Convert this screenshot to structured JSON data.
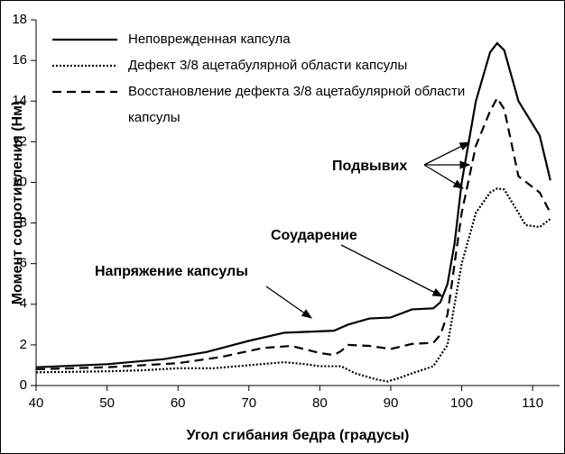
{
  "chart_data": {
    "type": "line",
    "xlabel": "Угол сгибания бедра (градусы)",
    "ylabel": "Момент сопротивления (Нм)",
    "xlim": [
      40,
      113.8
    ],
    "xticks": [
      40,
      50,
      60,
      70,
      80,
      90,
      100,
      110
    ],
    "ylim": [
      0,
      18
    ],
    "yticks": [
      0,
      2,
      4,
      6,
      8,
      10,
      12,
      14,
      16,
      18
    ],
    "grid": false,
    "legend": "upper left",
    "annotations": [
      "Подвывих",
      "Соударение",
      "Напряжение капсулы"
    ],
    "series": [
      {
        "name": "Неповрежденная капсула",
        "color": "#000000",
        "linestyle": "solid",
        "x": [
          40,
          50,
          58,
          64,
          70,
          75,
          82,
          84,
          87,
          90,
          93,
          96,
          97,
          98,
          99,
          100,
          102,
          104,
          105,
          106,
          108,
          111,
          112.5
        ],
        "values": [
          0.9,
          1.05,
          1.3,
          1.65,
          2.2,
          2.6,
          2.7,
          3.0,
          3.3,
          3.35,
          3.75,
          3.8,
          4.1,
          5,
          7,
          10,
          14,
          16.4,
          16.85,
          16.5,
          14,
          12.3,
          10.1
        ]
      },
      {
        "name": "Дефект 3/8 ацетабулярной области капсулы",
        "color": "#000000",
        "linestyle": "dotted",
        "x": [
          40,
          50,
          55,
          60,
          65,
          70,
          75,
          78,
          80,
          83,
          85,
          88,
          89.5,
          91,
          93,
          96,
          98,
          99,
          100,
          102,
          104,
          105,
          106,
          108,
          109,
          111,
          112.5
        ],
        "values": [
          0.65,
          0.7,
          0.75,
          0.85,
          0.85,
          1.0,
          1.15,
          1.05,
          0.95,
          0.95,
          0.6,
          0.3,
          0.2,
          0.35,
          0.6,
          0.95,
          2,
          4,
          6,
          8.5,
          9.5,
          9.7,
          9.65,
          8.5,
          7.9,
          7.8,
          8.2
        ]
      },
      {
        "name": "Восстановление дефекта 3/8 ацетабулярной области капсулы",
        "color": "#000000",
        "linestyle": "dashed",
        "x": [
          40,
          50,
          60,
          66,
          72,
          76,
          80,
          82,
          83,
          84,
          87,
          90,
          93,
          96,
          97,
          98,
          99,
          100,
          102,
          104,
          105,
          106,
          108,
          111,
          112.5
        ],
        "values": [
          0.8,
          0.9,
          1.1,
          1.4,
          1.85,
          1.95,
          1.6,
          1.5,
          1.7,
          2.0,
          1.95,
          1.8,
          2.05,
          2.1,
          2.5,
          3.5,
          6,
          8.5,
          11.8,
          13.5,
          14.15,
          13.6,
          10.3,
          9.5,
          8.5
        ]
      }
    ]
  }
}
